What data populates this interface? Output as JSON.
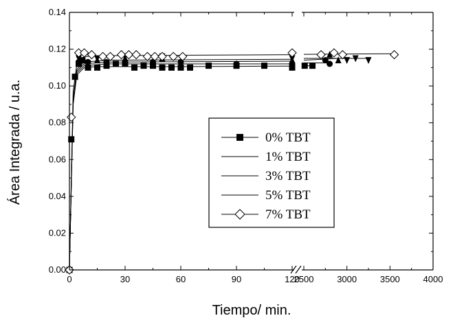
{
  "chart_data": {
    "type": "scatter",
    "title": "",
    "xlabel": "Tiempo/ min.",
    "ylabel": "Área Integrada / u.a.",
    "ylim": [
      0,
      0.14
    ],
    "yticks": [
      "0.00",
      "0.02",
      "0.04",
      "0.06",
      "0.08",
      "0.10",
      "0.12",
      "0.14"
    ],
    "x_axis_break": true,
    "x_segments": [
      {
        "xlim": [
          0,
          120
        ],
        "ticks": [
          "0",
          "30",
          "60",
          "90",
          "120"
        ]
      },
      {
        "xlim": [
          2500,
          4000
        ],
        "ticks": [
          "2500",
          "3000",
          "3500",
          "4000"
        ]
      }
    ],
    "legend_position": "center-right",
    "grid": false,
    "series": [
      {
        "name": "0% TBT",
        "marker": "filled-square",
        "points": [
          [
            0,
            0.0
          ],
          [
            1,
            0.071
          ],
          [
            3,
            0.105
          ],
          [
            5,
            0.112
          ],
          [
            7,
            0.114
          ],
          [
            10,
            0.11
          ],
          [
            15,
            0.11
          ],
          [
            20,
            0.111
          ],
          [
            25,
            0.112
          ],
          [
            30,
            0.112
          ],
          [
            35,
            0.11
          ],
          [
            40,
            0.111
          ],
          [
            45,
            0.111
          ],
          [
            50,
            0.11
          ],
          [
            55,
            0.11
          ],
          [
            60,
            0.11
          ],
          [
            65,
            0.11
          ],
          [
            75,
            0.111
          ],
          [
            90,
            0.111
          ],
          [
            105,
            0.111
          ],
          [
            120,
            0.11
          ],
          [
            2510,
            0.111
          ],
          [
            2600,
            0.111
          ]
        ],
        "fit": [
          [
            0,
            0.0
          ],
          [
            2,
            0.09
          ],
          [
            4,
            0.106
          ],
          [
            8,
            0.11
          ],
          [
            15,
            0.1105
          ],
          [
            60,
            0.1105
          ],
          [
            120,
            0.1108
          ],
          [
            2500,
            0.111
          ],
          [
            2600,
            0.111
          ]
        ]
      },
      {
        "name": "1% TBT",
        "marker": "filled-circle",
        "points": [
          [
            5,
            0.113
          ],
          [
            10,
            0.113
          ],
          [
            20,
            0.113
          ],
          [
            30,
            0.112
          ],
          [
            45,
            0.113
          ],
          [
            60,
            0.113
          ],
          [
            90,
            0.112
          ],
          [
            120,
            0.112
          ],
          [
            2750,
            0.114
          ],
          [
            2800,
            0.112
          ]
        ],
        "fit": [
          [
            0,
            0.0
          ],
          [
            2,
            0.09
          ],
          [
            4,
            0.107
          ],
          [
            8,
            0.111
          ],
          [
            20,
            0.112
          ],
          [
            120,
            0.112
          ],
          [
            2500,
            0.1125
          ],
          [
            2800,
            0.1125
          ]
        ]
      },
      {
        "name": "3% TBT",
        "marker": "filled-triangle",
        "points": [
          [
            5,
            0.114
          ],
          [
            15,
            0.114
          ],
          [
            30,
            0.115
          ],
          [
            50,
            0.115
          ],
          [
            120,
            0.114
          ],
          [
            2800,
            0.117
          ],
          [
            2900,
            0.114
          ]
        ],
        "fit": [
          [
            0,
            0.0
          ],
          [
            2,
            0.092
          ],
          [
            4,
            0.108
          ],
          [
            8,
            0.112
          ],
          [
            20,
            0.113
          ],
          [
            120,
            0.1135
          ],
          [
            2500,
            0.114
          ],
          [
            2900,
            0.115
          ]
        ]
      },
      {
        "name": "5% TBT",
        "marker": "filled-down-triangle",
        "points": [
          [
            5,
            0.115
          ],
          [
            15,
            0.115
          ],
          [
            30,
            0.116
          ],
          [
            50,
            0.116
          ],
          [
            120,
            0.115
          ],
          [
            3000,
            0.114
          ],
          [
            3100,
            0.115
          ],
          [
            3250,
            0.114
          ]
        ],
        "fit": [
          [
            0,
            0.0
          ],
          [
            2,
            0.093
          ],
          [
            4,
            0.109
          ],
          [
            8,
            0.113
          ],
          [
            20,
            0.114
          ],
          [
            120,
            0.1145
          ],
          [
            2500,
            0.115
          ],
          [
            3250,
            0.115
          ]
        ]
      },
      {
        "name": "7% TBT",
        "marker": "open-diamond",
        "points": [
          [
            0,
            0.0
          ],
          [
            1,
            0.083
          ],
          [
            5,
            0.118
          ],
          [
            8,
            0.118
          ],
          [
            12,
            0.117
          ],
          [
            18,
            0.116
          ],
          [
            22,
            0.116
          ],
          [
            28,
            0.117
          ],
          [
            32,
            0.117
          ],
          [
            36,
            0.117
          ],
          [
            42,
            0.116
          ],
          [
            46,
            0.116
          ],
          [
            50,
            0.116
          ],
          [
            56,
            0.116
          ],
          [
            61,
            0.116
          ],
          [
            120,
            0.118
          ],
          [
            2700,
            0.117
          ],
          [
            2850,
            0.118
          ],
          [
            2950,
            0.117
          ],
          [
            3550,
            0.117
          ]
        ],
        "fit": [
          [
            0,
            0.0
          ],
          [
            2,
            0.097
          ],
          [
            4,
            0.112
          ],
          [
            8,
            0.116
          ],
          [
            20,
            0.1165
          ],
          [
            120,
            0.117
          ],
          [
            2500,
            0.1172
          ],
          [
            3550,
            0.1175
          ]
        ]
      }
    ]
  }
}
